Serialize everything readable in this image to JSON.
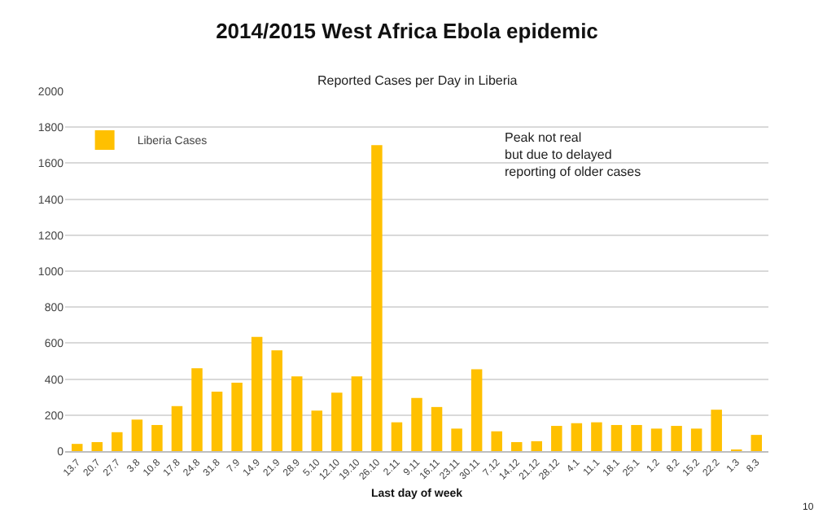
{
  "chart_data": {
    "type": "bar",
    "title": "2014/2015 West Africa Ebola epidemic",
    "subtitle": "Reported Cases per Day in Liberia",
    "xlabel": "Last day of week",
    "categories": [
      "13.7",
      "20.7",
      "27.7",
      "3.8",
      "10.8",
      "17.8",
      "24.8",
      "31.8",
      "7.9",
      "14.9",
      "21.9",
      "28.9",
      "5.10",
      "12.10",
      "19.10",
      "26.10",
      "2.11",
      "9.11",
      "16.11",
      "23.11",
      "30.11",
      "7.12",
      "14.12",
      "21.12",
      "28.12",
      "4.1",
      "11.1",
      "18.1",
      "25.1",
      "1.2",
      "8.2",
      "15.2",
      "22.2",
      "1.3",
      "8.3"
    ],
    "series": [
      {
        "name": "Liberia Cases",
        "color": "#ffc000",
        "values": [
          40,
          50,
          105,
          175,
          145,
          250,
          460,
          330,
          380,
          635,
          560,
          415,
          225,
          325,
          415,
          1700,
          160,
          295,
          245,
          125,
          455,
          110,
          50,
          55,
          140,
          155,
          160,
          145,
          145,
          125,
          140,
          125,
          230,
          5,
          90
        ]
      }
    ],
    "ylim": [
      0,
      2000
    ],
    "yticks": [
      0,
      200,
      400,
      600,
      800,
      1000,
      1200,
      1400,
      1600,
      1800,
      2000
    ],
    "grid": "y",
    "legend": "top left",
    "annotations": [
      "Peak not real\nbut due to delayed\nreporting of older cases",
      "10"
    ]
  }
}
